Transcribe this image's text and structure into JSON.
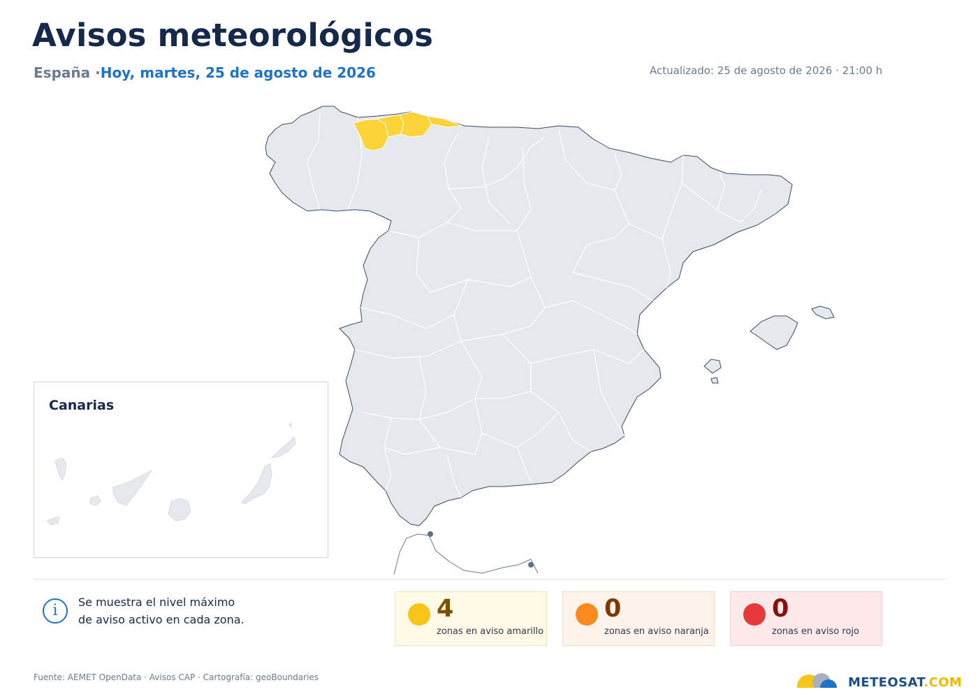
{
  "header": {
    "title": "Avisos meteorológicos",
    "region": "España",
    "separator": "·",
    "date": "Hoy, martes, 25 de agosto de 2026",
    "updated": "Actualizado: 25 de agosto de 2026 · 21:00 h"
  },
  "map": {
    "country": "España",
    "base_color": "#e5e8ed",
    "border_color": "#2f3e55",
    "zones_in_warning": [
      {
        "level": "amarillo",
        "color": "#fdd33a"
      },
      {
        "level": "amarillo",
        "color": "#fdd33a"
      },
      {
        "level": "amarillo",
        "color": "#fdd33a"
      },
      {
        "level": "amarillo",
        "color": "#fdd33a"
      }
    ]
  },
  "inset": {
    "label": "Canarias"
  },
  "info": {
    "icon": "info-icon",
    "line1": "Se muestra el nivel máximo",
    "line2": "de aviso activo en cada zona."
  },
  "stats": [
    {
      "count": "4",
      "label": "zonas en aviso amarillo",
      "color": "#f5c518"
    },
    {
      "count": "0",
      "label": "zonas en aviso naranja",
      "color": "#fb8a1c"
    },
    {
      "count": "0",
      "label": "zonas en aviso rojo",
      "color": "#e53a3a"
    }
  ],
  "footer": {
    "source": "Fuente: AEMET OpenData · Avisos CAP · Cartografía: geoBoundaries",
    "logo_main": "METEOSAT",
    "logo_domain": ".COM"
  }
}
